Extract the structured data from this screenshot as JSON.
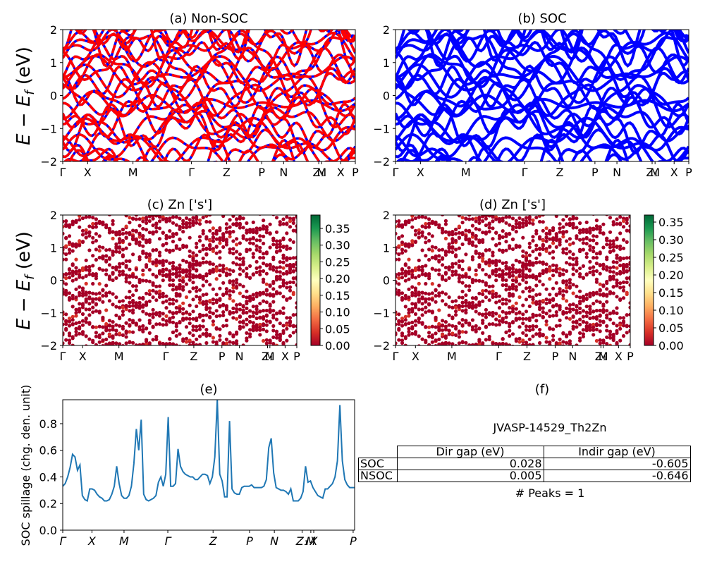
{
  "chart_data": [
    {
      "id": "a",
      "type": "line",
      "title": "(a) Non-SOC",
      "ylabel": "E − E_f (eV)",
      "ylim": [
        -2,
        2
      ],
      "yticks": [
        "−2",
        "−1",
        "0",
        "1",
        "2"
      ],
      "xticks": [
        "Γ",
        "X",
        "M",
        "Γ",
        "Z",
        "P",
        "N",
        "Z₁",
        "M",
        "X",
        "P"
      ],
      "xtick_positions": [
        0,
        0.085,
        0.24,
        0.44,
        0.56,
        0.68,
        0.755,
        0.875,
        0.885,
        0.95,
        1.0
      ],
      "series": [
        {
          "color": "#0000ff",
          "style": "solid"
        },
        {
          "color": "#ff0000",
          "style": "dashed"
        }
      ]
    },
    {
      "id": "b",
      "type": "line",
      "title": "(b) SOC",
      "ylim": [
        -2,
        2
      ],
      "yticks": [
        "−2",
        "−1",
        "0",
        "1",
        "2"
      ],
      "xticks": [
        "Γ",
        "X",
        "M",
        "Γ",
        "Z",
        "P",
        "N",
        "Z₁",
        "M",
        "X",
        "P"
      ],
      "xtick_positions": [
        0,
        0.085,
        0.24,
        0.44,
        0.56,
        0.68,
        0.755,
        0.875,
        0.885,
        0.95,
        1.0
      ],
      "series": [
        {
          "color": "#0000ff",
          "style": "solid"
        }
      ]
    },
    {
      "id": "c",
      "type": "scatter",
      "title": "(c)  Zn ['s']",
      "ylabel": "E − E_f (eV)",
      "ylim": [
        -2,
        2
      ],
      "yticks": [
        "−2",
        "−1",
        "0",
        "1",
        "2"
      ],
      "xticks": [
        "Γ",
        "X",
        "M",
        "Γ",
        "Z",
        "P",
        "N",
        "Z₁",
        "M",
        "X",
        "P"
      ],
      "xtick_positions": [
        0,
        0.085,
        0.24,
        0.44,
        0.56,
        0.68,
        0.755,
        0.875,
        0.885,
        0.95,
        1.0
      ],
      "colorbar": {
        "min": 0.0,
        "max": 0.39,
        "ticks": [
          "0.00",
          "0.05",
          "0.10",
          "0.15",
          "0.20",
          "0.25",
          "0.30",
          "0.35"
        ]
      }
    },
    {
      "id": "d",
      "type": "scatter",
      "title": "(d) Zn ['s']",
      "ylim": [
        -2,
        2
      ],
      "yticks": [
        "−2",
        "−1",
        "0",
        "1",
        "2"
      ],
      "xticks": [
        "Γ",
        "X",
        "M",
        "Γ",
        "Z",
        "P",
        "N",
        "Z₁",
        "M",
        "X",
        "P"
      ],
      "xtick_positions": [
        0,
        0.085,
        0.24,
        0.44,
        0.56,
        0.68,
        0.755,
        0.875,
        0.885,
        0.95,
        1.0
      ],
      "colorbar": {
        "min": 0.0,
        "max": 0.37,
        "ticks": [
          "0.00",
          "0.05",
          "0.10",
          "0.15",
          "0.20",
          "0.25",
          "0.30",
          "0.35"
        ]
      }
    },
    {
      "id": "e",
      "type": "line",
      "title": "(e)",
      "ylabel": "SOC spillage (chg. den. unit)",
      "ylim": [
        0.0,
        0.98
      ],
      "yticks": [
        "0.0",
        "0.2",
        "0.4",
        "0.6",
        "0.8"
      ],
      "ytick_values": [
        0.0,
        0.2,
        0.4,
        0.6,
        0.8
      ],
      "xticks": [
        "Γ",
        "X",
        "M",
        "Γ",
        "Z",
        "P",
        "N",
        "Z₁",
        "M",
        "X",
        "P"
      ],
      "xtick_positions": [
        0,
        0.1,
        0.21,
        0.36,
        0.515,
        0.64,
        0.725,
        0.82,
        0.85,
        0.86,
        0.995
      ],
      "color": "#1f77b4",
      "values": [
        0.33,
        0.35,
        0.4,
        0.47,
        0.57,
        0.55,
        0.45,
        0.49,
        0.26,
        0.23,
        0.22,
        0.31,
        0.31,
        0.3,
        0.27,
        0.25,
        0.24,
        0.22,
        0.22,
        0.23,
        0.27,
        0.33,
        0.48,
        0.35,
        0.26,
        0.24,
        0.24,
        0.26,
        0.33,
        0.5,
        0.76,
        0.6,
        0.83,
        0.27,
        0.23,
        0.22,
        0.23,
        0.24,
        0.26,
        0.36,
        0.4,
        0.33,
        0.42,
        0.85,
        0.33,
        0.33,
        0.35,
        0.61,
        0.48,
        0.44,
        0.42,
        0.41,
        0.4,
        0.4,
        0.38,
        0.38,
        0.4,
        0.42,
        0.42,
        0.41,
        0.35,
        0.4,
        0.55,
        0.98,
        0.42,
        0.37,
        0.25,
        0.25,
        0.82,
        0.31,
        0.28,
        0.27,
        0.27,
        0.32,
        0.33,
        0.33,
        0.33,
        0.34,
        0.32,
        0.32,
        0.32,
        0.32,
        0.33,
        0.38,
        0.62,
        0.69,
        0.43,
        0.32,
        0.31,
        0.3,
        0.3,
        0.29,
        0.27,
        0.31,
        0.22,
        0.22,
        0.22,
        0.24,
        0.29,
        0.48,
        0.36,
        0.37,
        0.32,
        0.29,
        0.26,
        0.25,
        0.24,
        0.31,
        0.31,
        0.33,
        0.35,
        0.4,
        0.52,
        0.94,
        0.52,
        0.38,
        0.34,
        0.32,
        0.32,
        0.32
      ]
    }
  ],
  "panel_f": {
    "title": "(f)",
    "jid": "JVASP-14529_Th2Zn",
    "table": {
      "headers": [
        "Dir gap (eV)",
        "Indir gap (eV)"
      ],
      "rows": [
        {
          "label": "SOC",
          "dir": "0.028",
          "indir": "-0.605"
        },
        {
          "label": "NSOC",
          "dir": "0.005",
          "indir": "-0.646"
        }
      ]
    },
    "peaks": "# Peaks = 1"
  },
  "colors": {
    "soc_band": "#0000ff",
    "nsoc_band": "#ff0000",
    "spillage_line": "#1f77b4",
    "cmap_low": "#a50026",
    "cmap_high": "#006837"
  }
}
